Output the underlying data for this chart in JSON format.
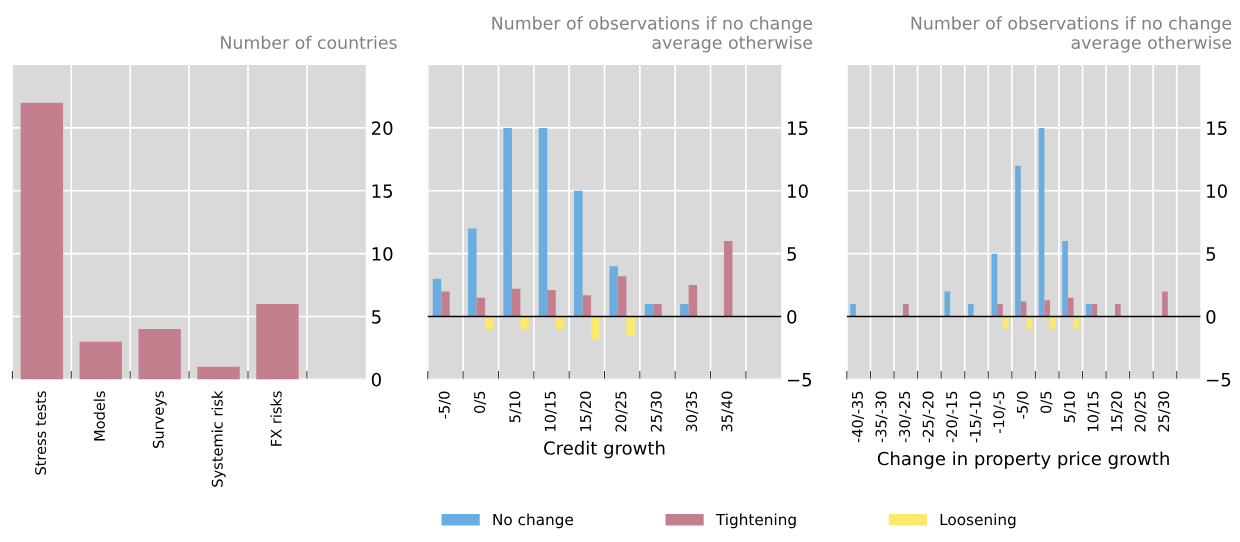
{
  "chart_data": [
    {
      "type": "bar",
      "ylabel": "Number of countries",
      "categories": [
        "Stress tests",
        "Models",
        "Surveys",
        "Systemic risk",
        "FX risks",
        null
      ],
      "series": [
        {
          "color": "#c47f8f",
          "values": [
            22,
            3,
            4,
            1,
            6,
            null
          ]
        }
      ],
      "ylim": [
        0,
        25
      ],
      "yticks": [
        0,
        5,
        10,
        15,
        20
      ],
      "grid": true
    },
    {
      "type": "bar",
      "ylabel": "Number of observations if no change\naverage otherwise",
      "xlabel": "Credit growth",
      "categories": [
        "-5/0",
        "0/5",
        "5/10",
        "10/15",
        "15/20",
        "20/25",
        "25/30",
        "30/35",
        "35/40",
        null
      ],
      "series": [
        {
          "name": "No change",
          "color": "#6aade0",
          "values": [
            3,
            7,
            15,
            15,
            10,
            4,
            1,
            1,
            null,
            null
          ]
        },
        {
          "name": "Tightening",
          "color": "#c47f8f",
          "values": [
            2,
            1.5,
            2.2,
            2.1,
            1.7,
            3.2,
            1,
            2.5,
            6,
            null
          ]
        },
        {
          "name": "Loosening",
          "color": "#fce96b",
          "values": [
            null,
            -1,
            -1,
            -1,
            -1.8,
            -1.5,
            null,
            null,
            null,
            null
          ]
        }
      ],
      "ylim": [
        -5,
        20
      ],
      "yticks": [
        {
          "value": -5,
          "label": "−5"
        },
        0,
        5,
        10,
        15
      ],
      "grid": true,
      "legend": "bottom",
      "ref_lines": [
        {
          "axis": "y",
          "value": 0,
          "color": "#000000"
        }
      ]
    },
    {
      "type": "bar",
      "ylabel": "Number of observations if no change\naverage otherwise",
      "xlabel": "Change in property price growth",
      "categories": [
        "-40/-35",
        "-35/-30",
        "-30/-25",
        "-25/-20",
        "-20/-15",
        "-15/-10",
        "-10/-5",
        "-5/0",
        "0/5",
        "5/10",
        "10/15",
        "15/20",
        "20/25",
        "25/30",
        null
      ],
      "series": [
        {
          "color": "#6aade0",
          "values": [
            1,
            null,
            null,
            null,
            2,
            1,
            5,
            12,
            15,
            6,
            1,
            null,
            null,
            null,
            null
          ]
        },
        {
          "color": "#c47f8f",
          "values": [
            null,
            null,
            1,
            null,
            null,
            null,
            1,
            1.2,
            1.3,
            1.5,
            1,
            1,
            null,
            2,
            null
          ]
        },
        {
          "color": "#fce96b",
          "values": [
            null,
            null,
            null,
            null,
            null,
            null,
            -1,
            -1,
            -1,
            -1,
            null,
            null,
            null,
            null,
            null
          ]
        }
      ],
      "ylim": [
        -5,
        20
      ],
      "yticks": [
        {
          "value": -5,
          "label": "−5"
        },
        0,
        5,
        10,
        15
      ],
      "grid": true,
      "ref_lines": [
        {
          "axis": "y",
          "value": 0,
          "color": "#000000"
        }
      ]
    }
  ]
}
